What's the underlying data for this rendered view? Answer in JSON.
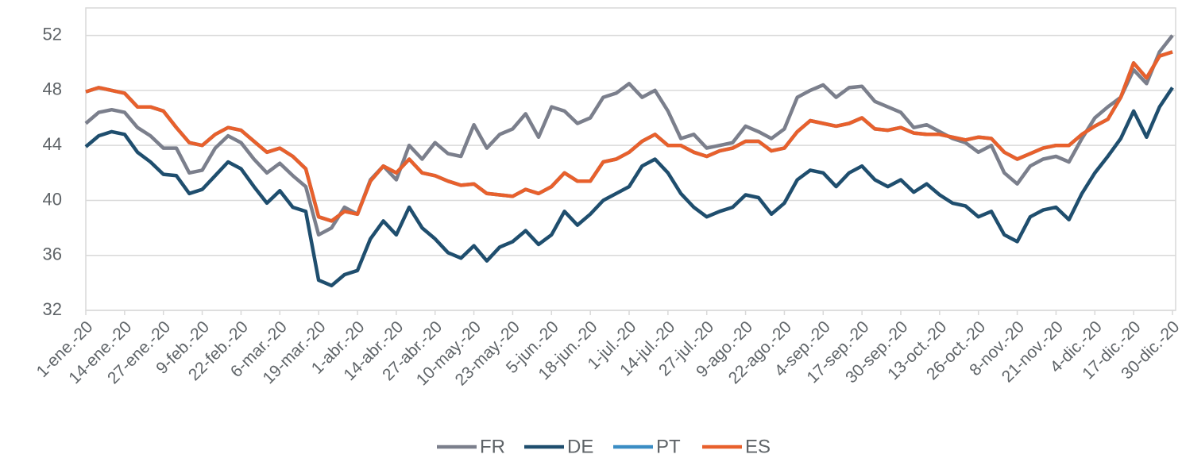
{
  "chart_data": {
    "type": "line",
    "categories": [
      "1-ene.-20",
      null,
      null,
      "14-ene.-20",
      null,
      null,
      "27-ene.-20",
      null,
      null,
      "9-feb.-20",
      null,
      null,
      "22-feb.-20",
      null,
      null,
      "6-mar.-20",
      null,
      null,
      "19-mar.-20",
      null,
      null,
      "1-abr.-20",
      null,
      null,
      "14-abr.-20",
      null,
      null,
      "27-abr.-20",
      null,
      null,
      "10-may.-20",
      null,
      null,
      "23-may.-20",
      null,
      null,
      "5-jun.-20",
      null,
      null,
      "18-jun.-20",
      null,
      null,
      "1-jul.-20",
      null,
      null,
      "14-jul.-20",
      null,
      null,
      "27-jul.-20",
      null,
      null,
      "9-ago.-20",
      null,
      null,
      "22-ago.-20",
      null,
      null,
      "4-sep.-20",
      null,
      null,
      "17-sep.-20",
      null,
      null,
      "30-sep.-20",
      null,
      null,
      "13-oct.-20",
      null,
      null,
      "26-oct.-20",
      null,
      null,
      "8-nov.-20",
      null,
      null,
      "21-nov.-20",
      null,
      null,
      "4-dic.-20",
      null,
      null,
      "17-dic.-20",
      null,
      null,
      "30-dic.-20"
    ],
    "series": [
      {
        "name": "FR",
        "color": "#7b7f8c",
        "values": [
          45.6,
          46.4,
          46.6,
          46.4,
          45.3,
          44.7,
          43.8,
          43.8,
          42.0,
          42.2,
          43.8,
          44.7,
          44.2,
          43.0,
          42.0,
          42.7,
          41.8,
          41.0,
          37.5,
          38.0,
          39.5,
          39.0,
          41.5,
          42.5,
          41.5,
          44.0,
          43.0,
          44.2,
          43.4,
          43.2,
          45.5,
          43.8,
          44.8,
          45.2,
          46.3,
          44.6,
          46.8,
          46.5,
          45.6,
          46.0,
          47.5,
          47.8,
          48.5,
          47.5,
          48.0,
          46.5,
          44.5,
          44.8,
          43.8,
          44.0,
          44.2,
          45.4,
          45.0,
          44.5,
          45.2,
          47.5,
          48.0,
          48.4,
          47.5,
          48.2,
          48.3,
          47.2,
          46.8,
          46.4,
          45.3,
          45.5,
          45.0,
          44.5,
          44.2,
          43.5,
          44.0,
          42.0,
          41.2,
          42.5,
          43.0,
          43.2,
          42.8,
          44.5,
          46.0,
          46.8,
          47.5,
          49.5,
          48.5,
          50.8,
          52.0
        ]
      },
      {
        "name": "DE",
        "color": "#1f4e6e",
        "values": [
          43.9,
          44.7,
          45.0,
          44.8,
          43.5,
          42.8,
          41.9,
          41.8,
          40.5,
          40.8,
          41.8,
          42.8,
          42.3,
          41.0,
          39.8,
          40.7,
          39.5,
          39.2,
          34.2,
          33.8,
          34.6,
          34.9,
          37.2,
          38.5,
          37.5,
          39.5,
          38.0,
          37.2,
          36.2,
          35.8,
          36.7,
          35.6,
          36.6,
          37.0,
          37.8,
          36.8,
          37.5,
          39.2,
          38.2,
          39.0,
          40.0,
          40.5,
          41.0,
          42.5,
          43.0,
          42.0,
          40.5,
          39.5,
          38.8,
          39.2,
          39.5,
          40.4,
          40.2,
          39.0,
          39.8,
          41.5,
          42.2,
          42.0,
          41.0,
          42.0,
          42.5,
          41.5,
          41.0,
          41.5,
          40.6,
          41.2,
          40.4,
          39.8,
          39.6,
          38.8,
          39.2,
          37.5,
          37.0,
          38.8,
          39.3,
          39.5,
          38.6,
          40.5,
          42.0,
          43.2,
          44.5,
          46.5,
          44.6,
          46.8,
          48.2
        ]
      },
      {
        "name": "PT",
        "color": "#3b8dc4",
        "values": [
          47.9,
          48.2,
          48.0,
          47.8,
          46.8,
          46.8,
          46.5,
          45.3,
          44.2,
          44.0,
          44.8,
          45.3,
          45.1,
          44.3,
          43.5,
          43.8,
          43.2,
          42.3,
          38.8,
          38.5,
          39.2,
          39.0,
          41.4,
          42.5,
          42.0,
          43.0,
          42.0,
          41.8,
          41.4,
          41.1,
          41.2,
          40.5,
          40.4,
          40.3,
          40.8,
          40.5,
          41.0,
          42.0,
          41.4,
          41.4,
          42.8,
          43.0,
          43.5,
          44.3,
          44.8,
          44.0,
          44.0,
          43.5,
          43.2,
          43.6,
          43.8,
          44.3,
          44.3,
          43.6,
          43.8,
          45.0,
          45.8,
          45.6,
          45.4,
          45.6,
          46.0,
          45.2,
          45.1,
          45.3,
          44.9,
          44.8,
          44.8,
          44.6,
          44.4,
          44.6,
          44.5,
          43.5,
          43.0,
          43.4,
          43.8,
          44.0,
          44.0,
          44.8,
          45.4,
          45.9,
          47.5,
          50.0,
          48.9,
          50.5,
          50.8
        ]
      },
      {
        "name": "ES",
        "color": "#e8602c",
        "values": [
          47.9,
          48.2,
          48.0,
          47.8,
          46.8,
          46.8,
          46.5,
          45.3,
          44.2,
          44.0,
          44.8,
          45.3,
          45.1,
          44.3,
          43.5,
          43.8,
          43.2,
          42.3,
          38.8,
          38.5,
          39.2,
          39.0,
          41.4,
          42.5,
          42.0,
          43.0,
          42.0,
          41.8,
          41.4,
          41.1,
          41.2,
          40.5,
          40.4,
          40.3,
          40.8,
          40.5,
          41.0,
          42.0,
          41.4,
          41.4,
          42.8,
          43.0,
          43.5,
          44.3,
          44.8,
          44.0,
          44.0,
          43.5,
          43.2,
          43.6,
          43.8,
          44.3,
          44.3,
          43.6,
          43.8,
          45.0,
          45.8,
          45.6,
          45.4,
          45.6,
          46.0,
          45.2,
          45.1,
          45.3,
          44.9,
          44.8,
          44.8,
          44.6,
          44.4,
          44.6,
          44.5,
          43.5,
          43.0,
          43.4,
          43.8,
          44.0,
          44.0,
          44.8,
          45.4,
          45.9,
          47.5,
          50.0,
          48.9,
          50.5,
          50.8
        ]
      }
    ],
    "ylim": [
      32,
      54
    ],
    "yticks": [
      32,
      36,
      40,
      44,
      48,
      52
    ],
    "grid": true,
    "legend": "bottom"
  }
}
